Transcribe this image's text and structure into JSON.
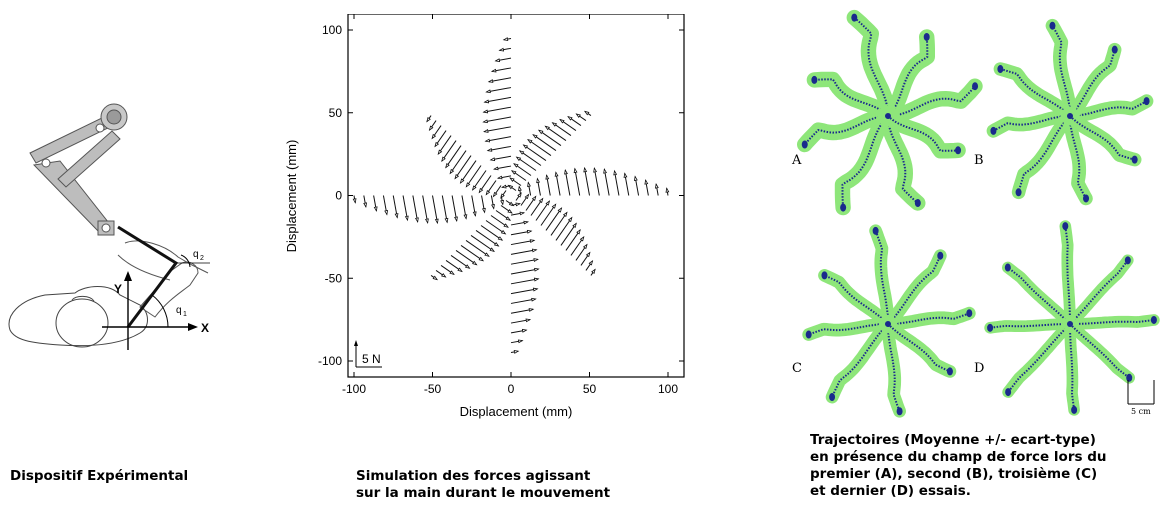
{
  "panel1": {
    "caption": "Dispositif Expérimental",
    "labels": {
      "x_axis": "X",
      "y_axis": "Y",
      "q1": "q",
      "q1_sub": "1",
      "q2": "q",
      "q2_sub": "2"
    }
  },
  "panel2": {
    "caption_lines": [
      "Simulation des forces agissant",
      "sur la main durant le mouvement"
    ],
    "scale_label": "5 N",
    "chart_data": {
      "type": "quiver",
      "xlabel": "Displacement (mm)",
      "ylabel": "Displacement (mm)",
      "xlim": [
        -100,
        100
      ],
      "ylim": [
        -100,
        100
      ],
      "xticks": [
        "-100",
        "-50",
        "0",
        "50",
        "100"
      ],
      "yticks": [
        "100",
        "50",
        "0",
        "-50",
        "-100"
      ],
      "directions_deg": [
        0,
        45,
        90,
        135,
        180,
        225,
        270,
        315
      ],
      "radial_extent_mm": 100
    }
  },
  "panel3": {
    "caption_lines": [
      "Trajectoires (Moyenne +/- ecart-type)",
      "en présence du champ de force lors du",
      "premier (A), second (B), troisième (C)",
      "et dernier (D) essais."
    ],
    "subplots": [
      {
        "label": "A"
      },
      {
        "label": "B"
      },
      {
        "label": "C"
      },
      {
        "label": "D"
      }
    ],
    "scale_label": "5 cm",
    "colors": {
      "band": "#8ee67a",
      "trajectory": "#1a2a8c"
    }
  }
}
